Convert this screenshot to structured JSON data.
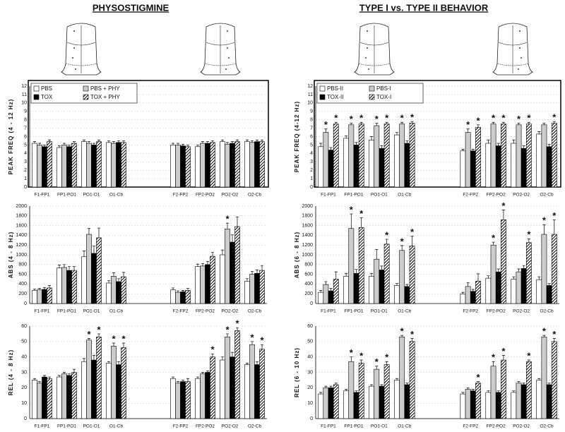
{
  "titles": [
    "PHYSOSTIGMINE",
    "TYPE I vs. TYPE II BEHAVIOR"
  ],
  "chart_data": [
    {
      "type": "bar",
      "ylabel": "PEAK FREQ (4 - 12 Hz)",
      "legend": "upper left",
      "grid": true,
      "categories": [
        "F1-FP1",
        "FP1-PO1",
        "PO1-O1",
        "O1-Cb",
        "F2-FP2",
        "FP2-PO2",
        "PO2-O2",
        "O2-Cb"
      ],
      "ylim": [
        0,
        12
      ],
      "yticks": [
        0,
        1,
        2,
        3,
        4,
        5,
        6,
        7,
        8,
        9,
        10,
        11,
        12
      ],
      "series": [
        {
          "name": "PBS",
          "color": "#ffffff",
          "values": [
            5.2,
            4.7,
            5.4,
            5.3,
            5.0,
            4.8,
            5.4,
            5.4
          ],
          "errors": [
            0.2,
            0.2,
            0.2,
            0.2,
            0.2,
            0.2,
            0.2,
            0.2
          ]
        },
        {
          "name": "PBS + PHY",
          "color": "#cccccc",
          "values": [
            5.0,
            5.0,
            5.2,
            5.2,
            5.0,
            5.2,
            5.1,
            5.3
          ],
          "errors": [
            0.2,
            0.2,
            0.2,
            0.2,
            0.2,
            0.2,
            0.2,
            0.2
          ]
        },
        {
          "name": "TOX",
          "color": "#000000",
          "values": [
            4.8,
            4.8,
            5.0,
            5.3,
            4.9,
            5.2,
            5.2,
            5.4
          ],
          "errors": [
            0.2,
            0.2,
            0.2,
            0.2,
            0.2,
            0.2,
            0.2,
            0.2
          ]
        },
        {
          "name": "TOX + PHY",
          "color": "#000000",
          "hatched": true,
          "values": [
            5.4,
            5.2,
            5.4,
            5.3,
            4.8,
            5.3,
            5.4,
            5.4
          ],
          "errors": [
            0.2,
            0.2,
            0.2,
            0.2,
            0.2,
            0.2,
            0.2,
            0.2
          ]
        }
      ]
    },
    {
      "type": "bar",
      "ylabel": "PEAK FREQ (4-12 Hz)",
      "legend": "upper left",
      "grid": true,
      "categories": [
        "F1-FP1",
        "FP1-PO1",
        "PO1-O1",
        "O1-Cb",
        "F2-FP2",
        "FP2-PO2",
        "PO2-O2",
        "O2-Cb"
      ],
      "ylim": [
        0,
        12
      ],
      "yticks": [
        0,
        1,
        2,
        3,
        4,
        5,
        6,
        7,
        8,
        9,
        10,
        11,
        12
      ],
      "series": [
        {
          "name": "PBS-II",
          "color": "#ffffff",
          "values": [
            4.8,
            5.8,
            5.6,
            6.2,
            4.3,
            5.2,
            5.2,
            6.3
          ],
          "errors": [
            0.4,
            0.3,
            0.4,
            0.3,
            0.2,
            0.4,
            0.4,
            0.3
          ]
        },
        {
          "name": "PBS-I",
          "color": "#cccccc",
          "values": [
            6.5,
            7.4,
            7.3,
            7.5,
            6.5,
            7.5,
            7.4,
            7.4
          ],
          "errors": [
            0.4,
            0.2,
            0.3,
            0.2,
            0.4,
            0.2,
            0.2,
            0.2
          ]
        },
        {
          "name": "TOX-II",
          "color": "#000000",
          "values": [
            4.4,
            5.0,
            4.6,
            5.2,
            4.3,
            4.9,
            4.6,
            4.8
          ],
          "errors": [
            0.3,
            0.3,
            0.3,
            0.3,
            0.2,
            0.3,
            0.3,
            0.3
          ]
        },
        {
          "name": "TOX-I",
          "color": "#000000",
          "hatched": true,
          "values": [
            7.5,
            7.5,
            7.5,
            7.6,
            7.1,
            7.5,
            7.5,
            7.6
          ],
          "errors": [
            0.2,
            0.2,
            0.2,
            0.2,
            0.3,
            0.2,
            0.2,
            0.2
          ]
        }
      ],
      "annotations": [
        {
          "text": "*",
          "series": 1,
          "category": 0
        },
        {
          "text": "*",
          "series": 3,
          "category": 0
        },
        {
          "text": "*",
          "series": 1,
          "category": 1
        },
        {
          "text": "*",
          "series": 3,
          "category": 1
        },
        {
          "text": "*",
          "series": 1,
          "category": 2
        },
        {
          "text": "*",
          "series": 3,
          "category": 2
        },
        {
          "text": "*",
          "series": 1,
          "category": 3
        },
        {
          "text": "*",
          "series": 3,
          "category": 3
        },
        {
          "text": "*",
          "series": 1,
          "category": 4
        },
        {
          "text": "*",
          "series": 3,
          "category": 4
        },
        {
          "text": "*",
          "series": 1,
          "category": 5
        },
        {
          "text": "*",
          "series": 3,
          "category": 5
        },
        {
          "text": "*",
          "series": 1,
          "category": 6
        },
        {
          "text": "*",
          "series": 3,
          "category": 6
        },
        {
          "text": "*",
          "series": 3,
          "category": 7
        }
      ]
    },
    {
      "type": "bar",
      "ylabel": "ABS (4 - 8 Hz)",
      "grid": true,
      "categories": [
        "F1-FP1",
        "FP1-PO1",
        "PO1-O1",
        "O1-Cb",
        "F2-FP2",
        "FP2-PO2",
        "PO2-O2",
        "O2-Cb"
      ],
      "ylim": [
        0,
        2000
      ],
      "yticks": [
        0,
        200,
        400,
        600,
        800,
        1000,
        1200,
        1400,
        1600,
        1800,
        2000
      ],
      "series": [
        {
          "name": "PBS",
          "color": "#ffffff",
          "values": [
            270,
            730,
            960,
            420,
            280,
            760,
            1000,
            460
          ],
          "errors": [
            30,
            60,
            120,
            50,
            40,
            50,
            100,
            50
          ]
        },
        {
          "name": "PBS + PHY",
          "color": "#cccccc",
          "values": [
            280,
            740,
            1420,
            560,
            230,
            770,
            1530,
            600
          ],
          "errors": [
            30,
            60,
            120,
            70,
            30,
            50,
            120,
            60
          ]
        },
        {
          "name": "TOX",
          "color": "#000000",
          "values": [
            290,
            680,
            1030,
            450,
            240,
            800,
            1260,
            620
          ],
          "errors": [
            40,
            80,
            150,
            60,
            30,
            60,
            150,
            70
          ]
        },
        {
          "name": "TOX + PHY",
          "color": "#000000",
          "hatched": true,
          "values": [
            320,
            680,
            1350,
            550,
            270,
            970,
            1580,
            680
          ],
          "errors": [
            50,
            80,
            200,
            90,
            40,
            80,
            200,
            100
          ]
        }
      ],
      "annotations": [
        {
          "text": "*",
          "series": 1,
          "category": 6
        }
      ]
    },
    {
      "type": "bar",
      "ylabel": "ABS (6 - 8 Hz)",
      "grid": true,
      "categories": [
        "F1-FP1",
        "FP1-PO1",
        "PO1-O1",
        "O1-Cb",
        "F2-FP2",
        "FP2-PO2",
        "PO2-O2",
        "O2-Cb"
      ],
      "ylim": [
        0,
        2000
      ],
      "yticks": [
        0,
        200,
        400,
        600,
        800,
        1000,
        1200,
        1400,
        1600,
        1800,
        2000
      ],
      "series": [
        {
          "name": "PBS-II",
          "color": "#ffffff",
          "values": [
            230,
            560,
            560,
            370,
            200,
            520,
            500,
            490
          ],
          "errors": [
            40,
            60,
            60,
            40,
            30,
            50,
            50,
            60
          ]
        },
        {
          "name": "PBS-I",
          "color": "#cccccc",
          "values": [
            390,
            1540,
            910,
            1090,
            350,
            1200,
            650,
            1420
          ],
          "errors": [
            60,
            300,
            200,
            100,
            80,
            60,
            60,
            200
          ]
        },
        {
          "name": "TOX-II",
          "color": "#000000",
          "values": [
            260,
            620,
            690,
            350,
            250,
            650,
            720,
            370
          ],
          "errors": [
            50,
            80,
            80,
            40,
            40,
            60,
            60,
            40
          ]
        },
        {
          "name": "TOX-I",
          "color": "#000000",
          "hatched": true,
          "values": [
            500,
            1560,
            1220,
            1180,
            460,
            1720,
            1250,
            1420
          ],
          "errors": [
            150,
            200,
            100,
            200,
            150,
            200,
            80,
            300
          ]
        }
      ],
      "annotations": [
        {
          "text": "*",
          "series": 1,
          "category": 1
        },
        {
          "text": "*",
          "series": 3,
          "category": 1
        },
        {
          "text": "*",
          "series": 3,
          "category": 2
        },
        {
          "text": "*",
          "series": 1,
          "category": 3
        },
        {
          "text": "*",
          "series": 3,
          "category": 3
        },
        {
          "text": "*",
          "series": 1,
          "category": 5
        },
        {
          "text": "*",
          "series": 3,
          "category": 5
        },
        {
          "text": "*",
          "series": 3,
          "category": 6
        },
        {
          "text": "*",
          "series": 1,
          "category": 7
        },
        {
          "text": "*",
          "series": 3,
          "category": 7
        }
      ]
    },
    {
      "type": "bar",
      "ylabel": "REL (4 - 8 Hz)",
      "grid": true,
      "categories": [
        "F1-FP1",
        "FP1-PO1",
        "PO1-O1",
        "O1-Cb",
        "F2-FP2",
        "FP2-PO2",
        "PO2-O2",
        "O2-Cb"
      ],
      "ylim": [
        0,
        60
      ],
      "yticks": [
        0,
        10,
        20,
        30,
        40,
        50,
        60
      ],
      "series": [
        {
          "name": "PBS",
          "color": "#ffffff",
          "values": [
            25,
            27,
            37,
            36,
            26,
            26,
            38,
            35
          ],
          "errors": [
            1,
            1,
            2,
            1,
            1,
            1,
            2,
            1
          ]
        },
        {
          "name": "PBS + PHY",
          "color": "#cccccc",
          "values": [
            23,
            29,
            51,
            47,
            23,
            29,
            53,
            48
          ],
          "errors": [
            1,
            1,
            1,
            2,
            1,
            1,
            2,
            2
          ]
        },
        {
          "name": "TOX",
          "color": "#000000",
          "values": [
            27,
            28,
            38,
            35,
            24,
            30,
            40,
            35
          ],
          "errors": [
            1,
            1,
            3,
            2,
            1,
            1,
            3,
            2
          ]
        },
        {
          "name": "TOX + PHY",
          "color": "#000000",
          "hatched": true,
          "values": [
            26,
            30,
            53,
            46,
            24,
            40,
            57,
            45
          ],
          "errors": [
            1,
            2,
            2,
            3,
            2,
            2,
            2,
            3
          ]
        }
      ],
      "annotations": [
        {
          "text": "*",
          "series": 1,
          "category": 2
        },
        {
          "text": "*",
          "series": 3,
          "category": 2
        },
        {
          "text": "*",
          "series": 1,
          "category": 3
        },
        {
          "text": "*",
          "series": 3,
          "category": 3
        },
        {
          "text": "*",
          "series": 3,
          "category": 5
        },
        {
          "text": "*",
          "series": 1,
          "category": 6
        },
        {
          "text": "*",
          "series": 3,
          "category": 6
        },
        {
          "text": "*",
          "series": 1,
          "category": 7
        },
        {
          "text": "*",
          "series": 3,
          "category": 7
        }
      ]
    },
    {
      "type": "bar",
      "ylabel": "REL (6 - 10 Hz)",
      "grid": true,
      "categories": [
        "F1-FP1",
        "FP1-PO1",
        "PO1-O1",
        "O1-Cb",
        "F2-FP2",
        "FP2-PO2",
        "PO2-O2",
        "O2-Cb"
      ],
      "ylim": [
        0,
        60
      ],
      "yticks": [
        0,
        10,
        20,
        30,
        40,
        50,
        60
      ],
      "series": [
        {
          "name": "PBS-II",
          "color": "#ffffff",
          "values": [
            16,
            18,
            21,
            25,
            16,
            17,
            17,
            25
          ],
          "errors": [
            1,
            1,
            1,
            1,
            1,
            1,
            1,
            1
          ]
        },
        {
          "name": "PBS-I",
          "color": "#cccccc",
          "values": [
            20,
            37,
            32,
            53,
            19,
            34,
            23,
            53
          ],
          "errors": [
            1,
            3,
            2,
            1,
            1,
            3,
            1,
            1
          ]
        },
        {
          "name": "TOX-II",
          "color": "#000000",
          "values": [
            20,
            17,
            21,
            22,
            18,
            17,
            22,
            22
          ],
          "errors": [
            1,
            1,
            1,
            1,
            1,
            1,
            1,
            1
          ]
        },
        {
          "name": "TOX-I",
          "color": "#000000",
          "hatched": true,
          "values": [
            22,
            36,
            35,
            50,
            23,
            38,
            37,
            50
          ],
          "errors": [
            1,
            2,
            2,
            2,
            1,
            3,
            1,
            2
          ]
        }
      ],
      "annotations": [
        {
          "text": "*",
          "series": 1,
          "category": 1
        },
        {
          "text": "*",
          "series": 3,
          "category": 1
        },
        {
          "text": "*",
          "series": 1,
          "category": 2
        },
        {
          "text": "*",
          "series": 3,
          "category": 2
        },
        {
          "text": "*",
          "series": 1,
          "category": 3
        },
        {
          "text": "*",
          "series": 3,
          "category": 3
        },
        {
          "text": "*",
          "series": 3,
          "category": 4
        },
        {
          "text": "*",
          "series": 1,
          "category": 5
        },
        {
          "text": "*",
          "series": 3,
          "category": 5
        },
        {
          "text": "*",
          "series": 3,
          "category": 6
        },
        {
          "text": "*",
          "series": 1,
          "category": 7
        },
        {
          "text": "*",
          "series": 3,
          "category": 7
        }
      ]
    }
  ]
}
